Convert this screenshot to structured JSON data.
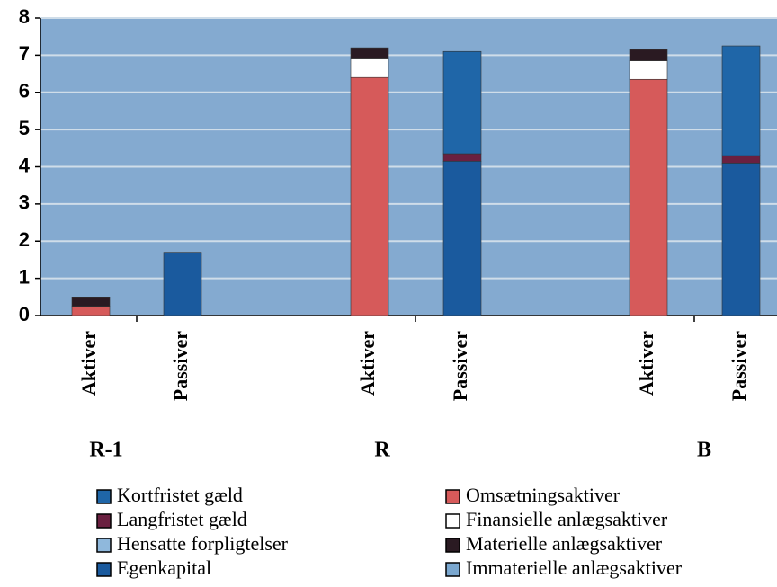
{
  "chart_data": {
    "type": "stacked_bar",
    "categories": [
      "Aktiver",
      "Passiver",
      "Aktiver",
      "Passiver",
      "Aktiver",
      "Passiver"
    ],
    "groups": [
      "R-1",
      "R",
      "B"
    ],
    "ylim": [
      0,
      8
    ],
    "yticks": [
      0,
      1,
      2,
      3,
      4,
      5,
      6,
      7,
      8
    ],
    "grid": true,
    "series": [
      {
        "name": "Omsætningsaktiver",
        "color": "#d65a5a",
        "values": [
          0.25,
          null,
          6.4,
          null,
          6.35,
          null
        ]
      },
      {
        "name": "Finansielle anlægsaktiver",
        "color": "#ffffff",
        "values": [
          null,
          null,
          0.5,
          null,
          0.5,
          null
        ]
      },
      {
        "name": "Materielle anlægsaktiver",
        "color": "#2a1a22",
        "values": [
          0.25,
          null,
          0.3,
          null,
          0.3,
          null
        ]
      },
      {
        "name": "Immaterielle anlægsaktiver",
        "color": "#7aa7cf",
        "values": [
          null,
          null,
          null,
          null,
          null,
          null
        ]
      },
      {
        "name": "Egenkapital",
        "color": "#1a5a9e",
        "values": [
          null,
          1.7,
          null,
          4.15,
          null,
          4.1
        ]
      },
      {
        "name": "Hensatte forpligtelser",
        "color": "#8fb8dc",
        "values": [
          null,
          null,
          null,
          null,
          null,
          null
        ]
      },
      {
        "name": "Langfristet gæld",
        "color": "#6a2040",
        "values": [
          null,
          null,
          null,
          0.2,
          null,
          0.2
        ]
      },
      {
        "name": "Kortfristet gæld",
        "color": "#1f66a8",
        "values": [
          null,
          null,
          null,
          2.75,
          null,
          2.95
        ]
      }
    ]
  }
}
